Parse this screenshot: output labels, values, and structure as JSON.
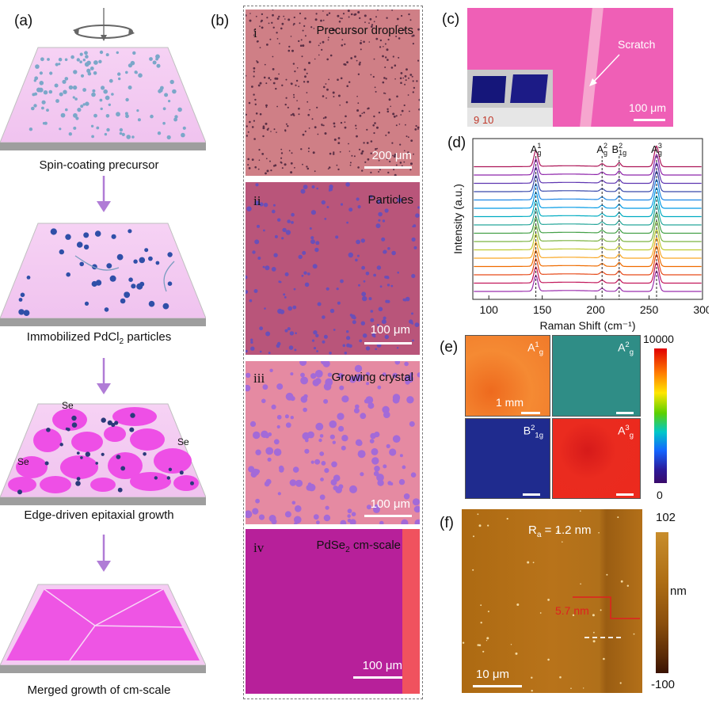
{
  "panel_labels": {
    "a": "(a)",
    "b": "(b)",
    "c": "(c)",
    "d": "(d)",
    "e": "(e)",
    "f": "(f)"
  },
  "panel_a": {
    "steps": [
      {
        "label": "Spin-coating precursor"
      },
      {
        "label_main": "Immobilized PdCl",
        "label_sub": "2",
        "label_tail": " particles"
      },
      {
        "label": "Edge-driven epitaxial growth"
      },
      {
        "label": "Merged growth of cm-scale"
      }
    ],
    "se_labels": [
      "Se",
      "Se",
      "Se"
    ]
  },
  "panel_b": {
    "images": [
      {
        "roman": "i",
        "title": "Precursor droplets",
        "scale": "200 μm"
      },
      {
        "roman": "ii",
        "title": "Particles",
        "scale": "100 μm"
      },
      {
        "roman": "iii",
        "title": "Growing crystal",
        "scale": "100 μm"
      },
      {
        "roman": "iv",
        "title_main": "PdSe",
        "title_sub": "2",
        "title_tail": " cm-scale",
        "scale": "100 μm"
      }
    ]
  },
  "panel_c": {
    "scratch_label": "Scratch",
    "scale": "100 μm",
    "ruler_text": "9   10"
  },
  "chart_data": {
    "type": "line",
    "title": "",
    "xlabel": "Raman Shift (cm⁻¹)",
    "ylabel": "Intensity (a.u.)",
    "xlim": [
      85,
      300
    ],
    "xticks": [
      100,
      150,
      200,
      250,
      300
    ],
    "peaks": [
      {
        "name": "A1g",
        "base": "A",
        "sup": "1",
        "sub": "g",
        "x": 144
      },
      {
        "name": "A2g",
        "base": "A",
        "sup": "2",
        "sub": "g",
        "x": 206
      },
      {
        "name": "B21g",
        "base": "B",
        "sup": "2",
        "sub": "1g",
        "x": 222
      },
      {
        "name": "A3g",
        "base": "A",
        "sup": "3",
        "sub": "g",
        "x": 257
      }
    ],
    "series_count": 16,
    "series_colors": [
      "#9b2fae",
      "#c2185b",
      "#e64a19",
      "#ef6c00",
      "#f9a825",
      "#c0ca33",
      "#7cb342",
      "#43a047",
      "#26a69a",
      "#00acc1",
      "#039be5",
      "#1e88e5",
      "#3949ab",
      "#5e35b1",
      "#8e24aa",
      "#ad1457"
    ]
  },
  "panel_e": {
    "maps": [
      {
        "base": "A",
        "sup": "1",
        "sub": "g",
        "color": "#f07d2a"
      },
      {
        "base": "A",
        "sup": "2",
        "sub": "g",
        "color": "#2e8b8a"
      },
      {
        "base": "B",
        "sup": "2",
        "sub": "1g",
        "color": "#1f2a8c"
      },
      {
        "base": "A",
        "sup": "3",
        "sub": "g",
        "color": "#e8231b"
      }
    ],
    "scale": "1 mm",
    "colorbar_max": "10000",
    "colorbar_min": "0"
  },
  "panel_f": {
    "ra_main": "R",
    "ra_sub": "a",
    "ra_tail": " = 1.2 nm",
    "step_label": "5.7 nm",
    "scale": "10 μm",
    "colorbar_max": "102",
    "colorbar_unit": "nm",
    "colorbar_min": "-100"
  }
}
